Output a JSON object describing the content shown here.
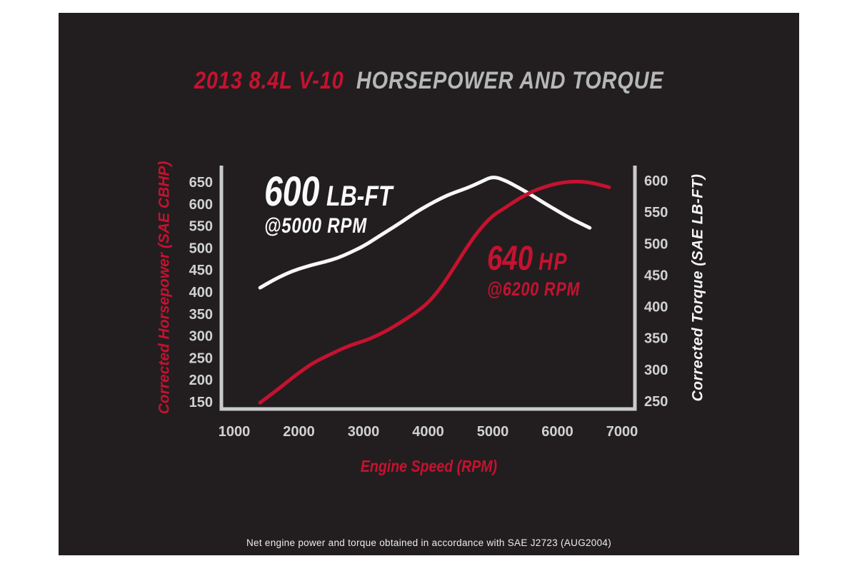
{
  "title": {
    "model": "2013 8.4L V-10",
    "rest": "HORSEPOWER AND TORQUE"
  },
  "annotations": {
    "torque": {
      "value": "600",
      "unit": "LB-FT",
      "at": "@5000 RPM"
    },
    "horsepower": {
      "value": "640",
      "unit": "HP",
      "at": "@6200 RPM"
    }
  },
  "footnote": "Net engine power and torque obtained in accordance with SAE J2723 (AUG2004)",
  "colors": {
    "page_background": "#ffffff",
    "panel_background": "#221e1f",
    "red": "#c51230",
    "silver": "#b5b7b9",
    "tick_label": "#d0d1d3",
    "axis_line": "#c9cbcd",
    "torque_curve": "#f7f7f7",
    "hp_curve": "#c51230"
  },
  "chart_data": {
    "type": "line",
    "title": "2013 8.4L V-10 HORSEPOWER AND TORQUE",
    "grid": false,
    "legend": "none (curves labeled by peak annotations)",
    "x_axis": {
      "label": "Engine Speed (RPM)",
      "ticks": [
        1000,
        2000,
        3000,
        4000,
        5000,
        6000,
        7000
      ],
      "range": [
        1000,
        7000
      ]
    },
    "left_axis": {
      "label": "Corrected Horsepower (SAE CBHP)",
      "ticks": [
        650,
        600,
        550,
        500,
        450,
        400,
        350,
        300,
        250,
        200,
        150
      ],
      "range": [
        150,
        650
      ]
    },
    "right_axis": {
      "label": "Corrected Torque (SAE LB-FT)",
      "ticks": [
        600,
        550,
        500,
        450,
        400,
        350,
        300,
        250
      ],
      "range": [
        250,
        600
      ]
    },
    "series": [
      {
        "name": "torque",
        "axis": "right",
        "units": "LB-FT",
        "color": "#f7f7f7",
        "peak": {
          "value": 600,
          "rpm": 5000
        },
        "points": [
          [
            1400,
            430
          ],
          [
            1600,
            442
          ],
          [
            1800,
            452
          ],
          [
            2000,
            460
          ],
          [
            2200,
            466
          ],
          [
            2400,
            471
          ],
          [
            2600,
            477
          ],
          [
            2800,
            486
          ],
          [
            3000,
            496
          ],
          [
            3200,
            509
          ],
          [
            3400,
            522
          ],
          [
            3600,
            535
          ],
          [
            3800,
            549
          ],
          [
            4000,
            561
          ],
          [
            4200,
            572
          ],
          [
            4400,
            581
          ],
          [
            4600,
            588
          ],
          [
            4800,
            597
          ],
          [
            5000,
            607
          ],
          [
            5200,
            600
          ],
          [
            5400,
            589
          ],
          [
            5600,
            577
          ],
          [
            5800,
            564
          ],
          [
            6000,
            552
          ],
          [
            6200,
            540
          ],
          [
            6400,
            530
          ],
          [
            6500,
            525
          ]
        ]
      },
      {
        "name": "horsepower",
        "axis": "left",
        "units": "HP",
        "color": "#c51230",
        "peak": {
          "value": 640,
          "rpm": 6200
        },
        "points": [
          [
            1400,
            148
          ],
          [
            1600,
            170
          ],
          [
            1800,
            193
          ],
          [
            2000,
            216
          ],
          [
            2200,
            237
          ],
          [
            2400,
            252
          ],
          [
            2600,
            266
          ],
          [
            2800,
            279
          ],
          [
            3000,
            288
          ],
          [
            3200,
            300
          ],
          [
            3400,
            315
          ],
          [
            3600,
            333
          ],
          [
            3800,
            352
          ],
          [
            4000,
            375
          ],
          [
            4200,
            410
          ],
          [
            4400,
            455
          ],
          [
            4600,
            502
          ],
          [
            4800,
            543
          ],
          [
            5000,
            574
          ],
          [
            5200,
            592
          ],
          [
            5400,
            612
          ],
          [
            5600,
            628
          ],
          [
            5800,
            639
          ],
          [
            6000,
            647
          ],
          [
            6200,
            651
          ],
          [
            6400,
            651
          ],
          [
            6600,
            646
          ],
          [
            6800,
            638
          ]
        ]
      }
    ]
  }
}
